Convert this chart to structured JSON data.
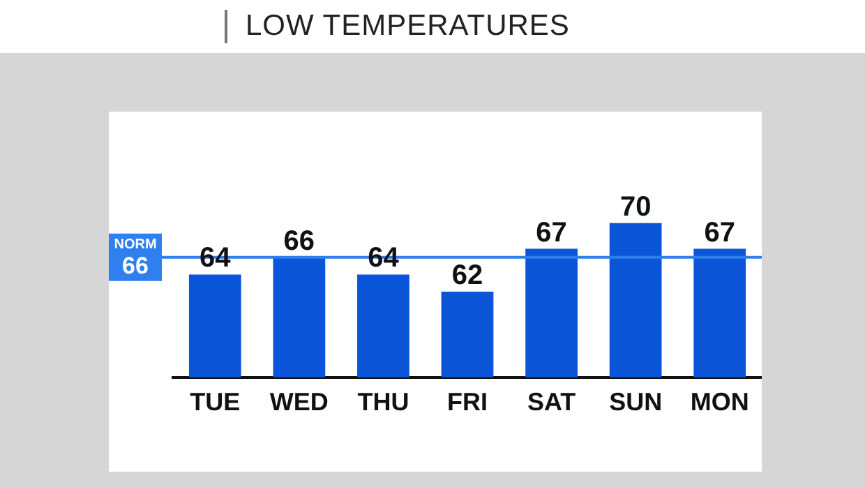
{
  "chart_data": {
    "type": "bar",
    "title": "LOW TEMPERATURES",
    "categories": [
      "TUE",
      "WED",
      "THU",
      "FRI",
      "SAT",
      "SUN",
      "MON"
    ],
    "values": [
      64,
      66,
      64,
      62,
      67,
      70,
      67
    ],
    "color": "#0b55d8",
    "ylim": [
      52,
      83
    ],
    "data_labels": true,
    "grid": false,
    "legend": false,
    "ref_lines": [
      {
        "axis": "y",
        "value": 66,
        "label": "NORM 66",
        "color": "#2f80ee"
      }
    ]
  }
}
